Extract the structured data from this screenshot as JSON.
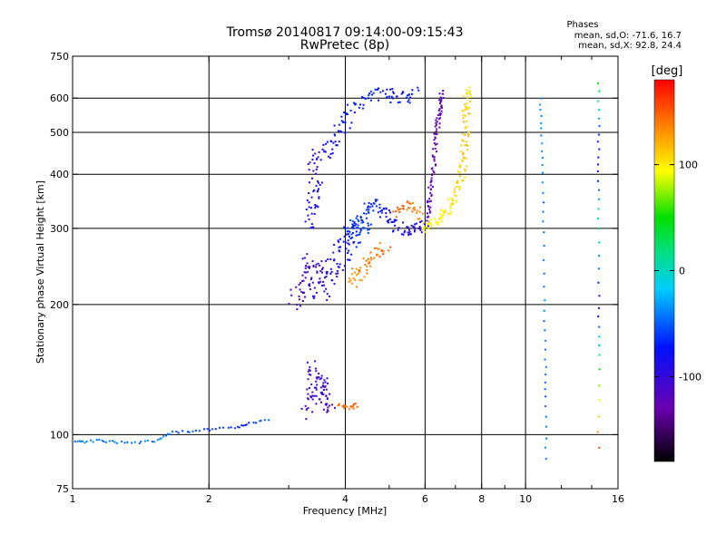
{
  "chart_data": {
    "type": "scatter",
    "title": "Tromsø 20140817 09:14:00-09:15:43",
    "subtitle": "RwPretec (8p)",
    "stats": {
      "heading": "Phases",
      "line_o": "mean, sd,O: -71.6, 16.7",
      "line_x": "mean, sd,X:  92.8, 24.4"
    },
    "xlabel": "Frequency [MHz]",
    "ylabel": "Stationary phase Virtual Height [km]",
    "x_scale": "log",
    "y_scale": "log",
    "xlim": [
      1,
      16
    ],
    "ylim": [
      75,
      750
    ],
    "x_ticks": [
      {
        "v": 1,
        "label": "1"
      },
      {
        "v": 2,
        "label": "2"
      },
      {
        "v": 4,
        "label": "4"
      },
      {
        "v": 6,
        "label": "6"
      },
      {
        "v": 8,
        "label": "8"
      },
      {
        "v": 10,
        "label": "10"
      },
      {
        "v": 16,
        "label": "16"
      }
    ],
    "x_minor": [
      3,
      5,
      7,
      9,
      12,
      14
    ],
    "x_grid": [
      2,
      4,
      6,
      8,
      10
    ],
    "y_ticks": [
      {
        "v": 75,
        "label": "75"
      },
      {
        "v": 100,
        "label": "100"
      },
      {
        "v": 200,
        "label": "200"
      },
      {
        "v": 300,
        "label": "300"
      },
      {
        "v": 400,
        "label": "400"
      },
      {
        "v": 500,
        "label": "500"
      },
      {
        "v": 600,
        "label": "600"
      },
      {
        "v": 750,
        "label": "750"
      }
    ],
    "y_grid": [
      100,
      200,
      300,
      400,
      500,
      600
    ],
    "colorbar": {
      "label": "[deg]",
      "range": [
        -180,
        180
      ],
      "ticks": [
        {
          "v": 100,
          "label": "100"
        },
        {
          "v": 0,
          "label": "0"
        },
        {
          "v": -100,
          "label": "-100"
        }
      ]
    },
    "traces": [
      {
        "name": "ground-line",
        "pts": [
          [
            1.0,
            97,
            -40
          ],
          [
            1.05,
            96,
            -40
          ],
          [
            1.15,
            97,
            -45
          ],
          [
            1.25,
            96,
            -40
          ],
          [
            1.4,
            96,
            -45
          ],
          [
            1.55,
            97,
            -40
          ],
          [
            1.65,
            101,
            -50
          ],
          [
            1.85,
            102,
            -55
          ],
          [
            2.05,
            103,
            -60
          ],
          [
            2.3,
            104,
            -65
          ],
          [
            2.45,
            106,
            -70
          ],
          [
            2.7,
            108,
            -45
          ]
        ],
        "n": 70,
        "j": 0.006
      },
      {
        "name": "e-layer-echo",
        "pts": [
          [
            3.3,
            112,
            -110
          ],
          [
            3.35,
            125,
            -115
          ],
          [
            3.4,
            145,
            -110
          ],
          [
            3.55,
            125,
            -105
          ],
          [
            3.7,
            112,
            -110
          ],
          [
            3.6,
            135,
            -100
          ],
          [
            3.4,
            120,
            -95
          ]
        ],
        "n": 80,
        "j": 0.03
      },
      {
        "name": "e-orange",
        "pts": [
          [
            3.85,
            118,
            145
          ],
          [
            4.05,
            115,
            140
          ],
          [
            4.25,
            117,
            150
          ]
        ],
        "n": 18,
        "j": 0.01
      },
      {
        "name": "o-lower-cluster",
        "pts": [
          [
            3.1,
            200,
            -115
          ],
          [
            3.25,
            230,
            -110
          ],
          [
            3.4,
            255,
            -105
          ],
          [
            3.55,
            210,
            -100
          ],
          [
            3.75,
            240,
            -90
          ],
          [
            3.95,
            265,
            -80
          ],
          [
            4.1,
            285,
            -70
          ],
          [
            4.25,
            300,
            -60
          ],
          [
            4.4,
            315,
            -55
          ]
        ],
        "n": 170,
        "j": 0.05
      },
      {
        "name": "o-mid-blue",
        "pts": [
          [
            3.35,
            300,
            -85
          ],
          [
            3.4,
            340,
            -80
          ],
          [
            3.45,
            380,
            -90
          ],
          [
            3.4,
            440,
            -95
          ],
          [
            3.65,
            455,
            -80
          ],
          [
            3.85,
            500,
            -75
          ],
          [
            4.1,
            560,
            -70
          ],
          [
            4.45,
            600,
            -65
          ],
          [
            4.9,
            620,
            -70
          ],
          [
            5.3,
            600,
            -75
          ],
          [
            5.7,
            620,
            -65
          ]
        ],
        "n": 150,
        "j": 0.035
      },
      {
        "name": "o-hump",
        "pts": [
          [
            4.2,
            300,
            -70
          ],
          [
            4.45,
            335,
            -65
          ],
          [
            4.7,
            340,
            -70
          ],
          [
            4.95,
            320,
            -75
          ],
          [
            5.25,
            300,
            -80
          ],
          [
            5.6,
            295,
            -90
          ],
          [
            5.95,
            305,
            -95
          ]
        ],
        "n": 90,
        "j": 0.03
      },
      {
        "name": "o-cusp",
        "pts": [
          [
            6.05,
            310,
            -120
          ],
          [
            6.15,
            355,
            -125
          ],
          [
            6.25,
            420,
            -130
          ],
          [
            6.35,
            500,
            -130
          ],
          [
            6.45,
            560,
            -125
          ],
          [
            6.55,
            620,
            -120
          ]
        ],
        "n": 90,
        "j": 0.012
      },
      {
        "name": "x-orange-low",
        "pts": [
          [
            4.1,
            225,
            130
          ],
          [
            4.35,
            240,
            135
          ],
          [
            4.6,
            255,
            140
          ],
          [
            4.9,
            275,
            145
          ]
        ],
        "n": 50,
        "j": 0.03
      },
      {
        "name": "x-orange-high",
        "pts": [
          [
            5.1,
            325,
            150
          ],
          [
            5.4,
            340,
            145
          ],
          [
            5.65,
            335,
            140
          ],
          [
            5.9,
            320,
            135
          ]
        ],
        "n": 30,
        "j": 0.02
      },
      {
        "name": "x-yellow",
        "pts": [
          [
            5.9,
            300,
            90
          ],
          [
            6.3,
            310,
            95
          ],
          [
            6.7,
            330,
            100
          ],
          [
            7.05,
            360,
            105
          ],
          [
            7.25,
            410,
            110
          ],
          [
            7.35,
            480,
            112
          ],
          [
            7.4,
            560,
            110
          ],
          [
            7.45,
            630,
            105
          ]
        ],
        "n": 130,
        "j": 0.02
      },
      {
        "name": "x-teal-trace",
        "pts": [
          [
            10.8,
            600,
            -40
          ],
          [
            10.85,
            500,
            -35
          ],
          [
            10.9,
            400,
            -40
          ],
          [
            10.95,
            300,
            -45
          ],
          [
            11.0,
            200,
            -40
          ],
          [
            11.05,
            150,
            -45
          ],
          [
            11.1,
            120,
            -50
          ],
          [
            11.1,
            88,
            -40
          ]
        ],
        "n": 40,
        "j": 0.004
      },
      {
        "name": "x-far-right",
        "pts": [
          [
            14.5,
            650,
            50
          ],
          [
            14.5,
            500,
            -60
          ],
          [
            14.5,
            400,
            -80
          ],
          [
            14.5,
            300,
            20
          ],
          [
            14.5,
            200,
            -110
          ],
          [
            14.5,
            150,
            40
          ],
          [
            14.5,
            93,
            150
          ]
        ],
        "n": 35,
        "j": 0.004
      }
    ]
  }
}
